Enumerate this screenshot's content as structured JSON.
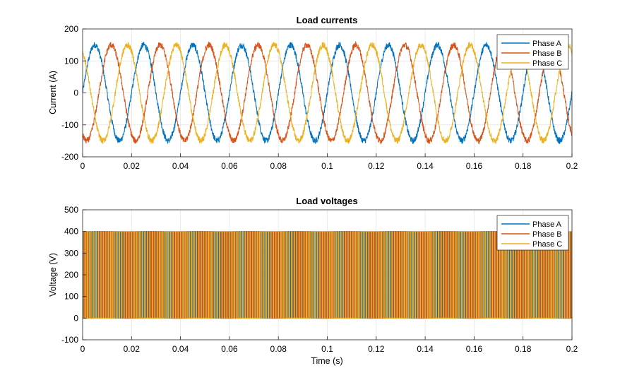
{
  "figure": {
    "background": "#ffffff",
    "axes_color": "#262626",
    "grid_color": "#e3e3e3"
  },
  "chart_data": [
    {
      "type": "line",
      "title": "Load currents",
      "xlabel": "",
      "ylabel": "Current (A)",
      "xlim": [
        0,
        0.2
      ],
      "ylim": [
        -200,
        200
      ],
      "xticks": [
        0,
        0.02,
        0.04,
        0.06,
        0.08,
        0.1,
        0.12,
        0.14,
        0.16,
        0.18,
        0.2
      ],
      "xtick_labels": [
        "0",
        "0.02",
        "0.04",
        "0.06",
        "0.08",
        "0.1",
        "0.12",
        "0.14",
        "0.16",
        "0.18",
        "0.2"
      ],
      "yticks": [
        -200,
        -100,
        0,
        100,
        200
      ],
      "ytick_labels": [
        "-200",
        "-100",
        "0",
        "100",
        "200"
      ],
      "grid": true,
      "legend_position": "top-right",
      "signal": {
        "waveform": "sinusoid with switching ripple",
        "frequency_hz": 50,
        "amplitude_a": 150,
        "ripple_amplitude_a": 10,
        "phase_shift_deg": [
          0,
          -120,
          120
        ]
      },
      "series": [
        {
          "name": "Phase A",
          "color": "#0072BD"
        },
        {
          "name": "Phase B",
          "color": "#D95319"
        },
        {
          "name": "Phase C",
          "color": "#EDB120"
        }
      ]
    },
    {
      "type": "line",
      "title": "Load voltages",
      "xlabel": "Time (s)",
      "ylabel": "Voltage (V)",
      "xlim": [
        0,
        0.2
      ],
      "ylim": [
        -100,
        500
      ],
      "xticks": [
        0,
        0.02,
        0.04,
        0.06,
        0.08,
        0.1,
        0.12,
        0.14,
        0.16,
        0.18,
        0.2
      ],
      "xtick_labels": [
        "0",
        "0.02",
        "0.04",
        "0.06",
        "0.08",
        "0.1",
        "0.12",
        "0.14",
        "0.16",
        "0.18",
        "0.2"
      ],
      "yticks": [
        -100,
        0,
        100,
        200,
        300,
        400,
        500
      ],
      "ytick_labels": [
        "-100",
        "0",
        "100",
        "200",
        "300",
        "400",
        "500"
      ],
      "grid": true,
      "legend_position": "top-right",
      "signal": {
        "waveform": "PWM square wave",
        "low_v": 0,
        "high_v": 400,
        "switching_frequency_hz": 1000,
        "modulation_frequency_hz": 50,
        "modulation_index": 0.8,
        "phase_shift_deg": [
          0,
          -120,
          120
        ]
      },
      "series": [
        {
          "name": "Phase A",
          "color": "#0072BD"
        },
        {
          "name": "Phase B",
          "color": "#D95319"
        },
        {
          "name": "Phase C",
          "color": "#EDB120"
        }
      ]
    }
  ]
}
